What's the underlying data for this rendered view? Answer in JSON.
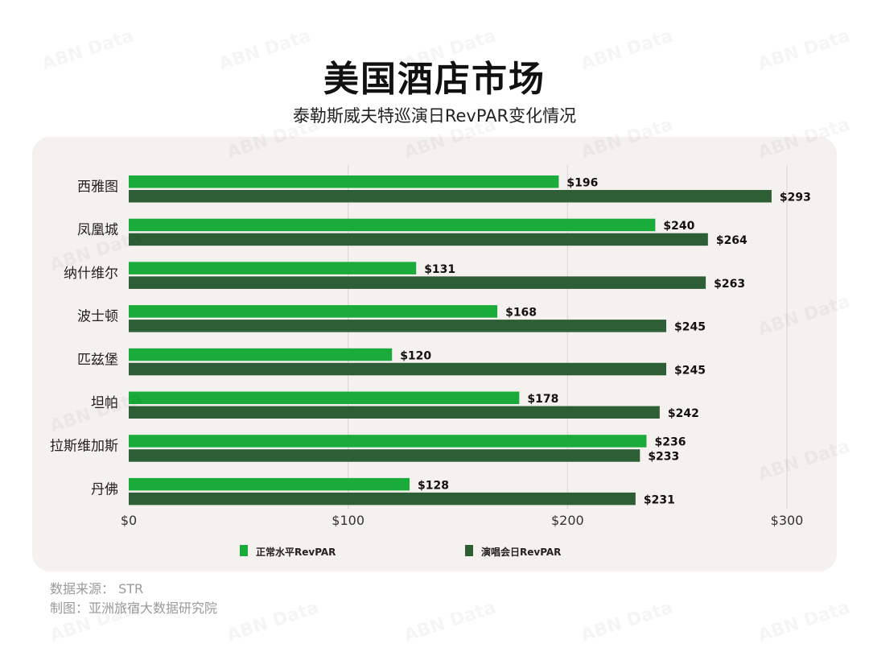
{
  "title": "美国酒店市场",
  "subtitle": "泰勒斯威夫特巡演日RevPAR变化情况",
  "footer": {
    "source": "数据来源： STR",
    "maker": "制图：亚洲旅宿大数据研究院"
  },
  "watermark_text": "ABN Data",
  "colors": {
    "normal": "#1aab3b",
    "concert": "#2d5e35",
    "panel": "#f4f1ee",
    "grid": "#d8d6d3"
  },
  "chart_data": {
    "type": "bar",
    "orientation": "horizontal",
    "categories": [
      "西雅图",
      "凤凰城",
      "纳什维尔",
      "波士顿",
      "匹兹堡",
      "坦帕",
      "拉斯维加斯",
      "丹佛"
    ],
    "series": [
      {
        "name": "正常水平RevPAR",
        "values": [
          196,
          240,
          131,
          168,
          120,
          178,
          236,
          128
        ]
      },
      {
        "name": "演唱会日RevPAR",
        "values": [
          293,
          264,
          263,
          245,
          245,
          242,
          233,
          231
        ]
      }
    ],
    "xlim": [
      0,
      300
    ],
    "xticks": [
      0,
      100,
      200,
      300
    ],
    "tick_labels": [
      "$0",
      "$100",
      "$200",
      "$300"
    ],
    "value_prefix": "$",
    "grid": true,
    "legend": "bottom"
  }
}
